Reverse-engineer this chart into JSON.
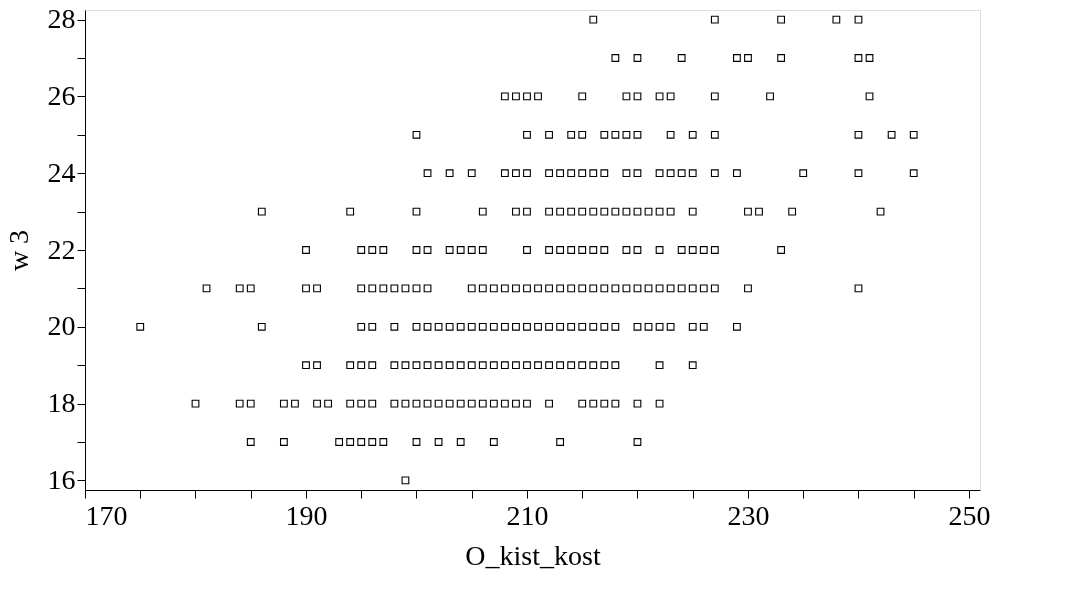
{
  "chart_data": {
    "type": "scatter",
    "xlabel": "O_kist_kost",
    "ylabel": "w 3",
    "marker": "square",
    "grid": false,
    "legend": false,
    "xlim": [
      170,
      251
    ],
    "ylim": [
      15.75,
      28.25
    ],
    "xticks": [
      170,
      {
        "value": 175,
        "label": null
      },
      {
        "value": 180,
        "label": null
      },
      {
        "value": 185,
        "label": null
      },
      190,
      {
        "value": 195,
        "label": null
      },
      {
        "value": 200,
        "label": null
      },
      {
        "value": 205,
        "label": null
      },
      210,
      {
        "value": 215,
        "label": null
      },
      {
        "value": 220,
        "label": null
      },
      {
        "value": 225,
        "label": null
      },
      230,
      {
        "value": 235,
        "label": null
      },
      {
        "value": 240,
        "label": null
      },
      {
        "value": 245,
        "label": null
      },
      250
    ],
    "yticks": [
      16,
      {
        "value": 17,
        "label": null
      },
      18,
      {
        "value": 19,
        "label": null
      },
      20,
      {
        "value": 21,
        "label": null
      },
      22,
      {
        "value": 23,
        "label": null
      },
      24,
      {
        "value": 25,
        "label": null
      },
      26,
      {
        "value": 27,
        "label": null
      },
      28
    ],
    "series": [
      {
        "color": "#000000",
        "x": [
          216,
          227,
          233,
          238,
          240,
          218,
          220,
          224,
          229,
          230,
          233,
          240,
          241,
          208,
          209,
          210,
          211,
          215,
          219,
          220,
          222,
          223,
          227,
          232,
          241,
          200,
          210,
          212,
          214,
          215,
          217,
          218,
          219,
          220,
          223,
          225,
          227,
          240,
          243,
          245,
          201,
          203,
          205,
          208,
          209,
          210,
          212,
          213,
          214,
          215,
          216,
          217,
          219,
          220,
          222,
          223,
          224,
          225,
          227,
          229,
          235,
          240,
          245,
          186,
          194,
          200,
          206,
          209,
          210,
          212,
          213,
          214,
          215,
          216,
          217,
          218,
          219,
          220,
          221,
          222,
          223,
          225,
          230,
          231,
          234,
          242,
          190,
          195,
          196,
          197,
          200,
          201,
          203,
          204,
          205,
          206,
          210,
          212,
          213,
          214,
          215,
          216,
          217,
          219,
          220,
          222,
          224,
          225,
          226,
          227,
          233,
          181,
          184,
          185,
          190,
          191,
          195,
          196,
          197,
          198,
          199,
          200,
          201,
          205,
          206,
          207,
          208,
          209,
          210,
          211,
          212,
          213,
          214,
          215,
          216,
          217,
          218,
          219,
          220,
          221,
          222,
          223,
          224,
          225,
          226,
          227,
          230,
          240,
          175,
          186,
          195,
          196,
          198,
          200,
          201,
          202,
          203,
          204,
          205,
          206,
          207,
          208,
          209,
          210,
          211,
          212,
          213,
          214,
          215,
          216,
          217,
          218,
          220,
          221,
          222,
          223,
          225,
          226,
          229,
          190,
          191,
          194,
          195,
          196,
          198,
          199,
          200,
          201,
          202,
          203,
          204,
          205,
          206,
          207,
          208,
          209,
          210,
          211,
          212,
          213,
          214,
          215,
          216,
          217,
          218,
          222,
          225,
          180,
          184,
          185,
          188,
          189,
          191,
          192,
          194,
          195,
          196,
          198,
          199,
          200,
          201,
          202,
          203,
          204,
          205,
          206,
          207,
          208,
          209,
          210,
          212,
          215,
          216,
          217,
          218,
          220,
          222,
          185,
          188,
          193,
          194,
          195,
          196,
          197,
          200,
          202,
          204,
          207,
          213,
          220,
          199
        ],
        "values": [
          28,
          28,
          28,
          28,
          28,
          27,
          27,
          27,
          27,
          27,
          27,
          27,
          27,
          26,
          26,
          26,
          26,
          26,
          26,
          26,
          26,
          26,
          26,
          26,
          26,
          25,
          25,
          25,
          25,
          25,
          25,
          25,
          25,
          25,
          25,
          25,
          25,
          25,
          25,
          25,
          24,
          24,
          24,
          24,
          24,
          24,
          24,
          24,
          24,
          24,
          24,
          24,
          24,
          24,
          24,
          24,
          24,
          24,
          24,
          24,
          24,
          24,
          24,
          23,
          23,
          23,
          23,
          23,
          23,
          23,
          23,
          23,
          23,
          23,
          23,
          23,
          23,
          23,
          23,
          23,
          23,
          23,
          23,
          23,
          23,
          23,
          22,
          22,
          22,
          22,
          22,
          22,
          22,
          22,
          22,
          22,
          22,
          22,
          22,
          22,
          22,
          22,
          22,
          22,
          22,
          22,
          22,
          22,
          22,
          22,
          22,
          21,
          21,
          21,
          21,
          21,
          21,
          21,
          21,
          21,
          21,
          21,
          21,
          21,
          21,
          21,
          21,
          21,
          21,
          21,
          21,
          21,
          21,
          21,
          21,
          21,
          21,
          21,
          21,
          21,
          21,
          21,
          21,
          21,
          21,
          21,
          21,
          21,
          20,
          20,
          20,
          20,
          20,
          20,
          20,
          20,
          20,
          20,
          20,
          20,
          20,
          20,
          20,
          20,
          20,
          20,
          20,
          20,
          20,
          20,
          20,
          20,
          20,
          20,
          20,
          20,
          20,
          20,
          20,
          19,
          19,
          19,
          19,
          19,
          19,
          19,
          19,
          19,
          19,
          19,
          19,
          19,
          19,
          19,
          19,
          19,
          19,
          19,
          19,
          19,
          19,
          19,
          19,
          19,
          19,
          19,
          19,
          18,
          18,
          18,
          18,
          18,
          18,
          18,
          18,
          18,
          18,
          18,
          18,
          18,
          18,
          18,
          18,
          18,
          18,
          18,
          18,
          18,
          18,
          18,
          18,
          18,
          18,
          18,
          18,
          18,
          18,
          17,
          17,
          17,
          17,
          17,
          17,
          17,
          17,
          17,
          17,
          17,
          17,
          17,
          16
        ]
      }
    ]
  }
}
